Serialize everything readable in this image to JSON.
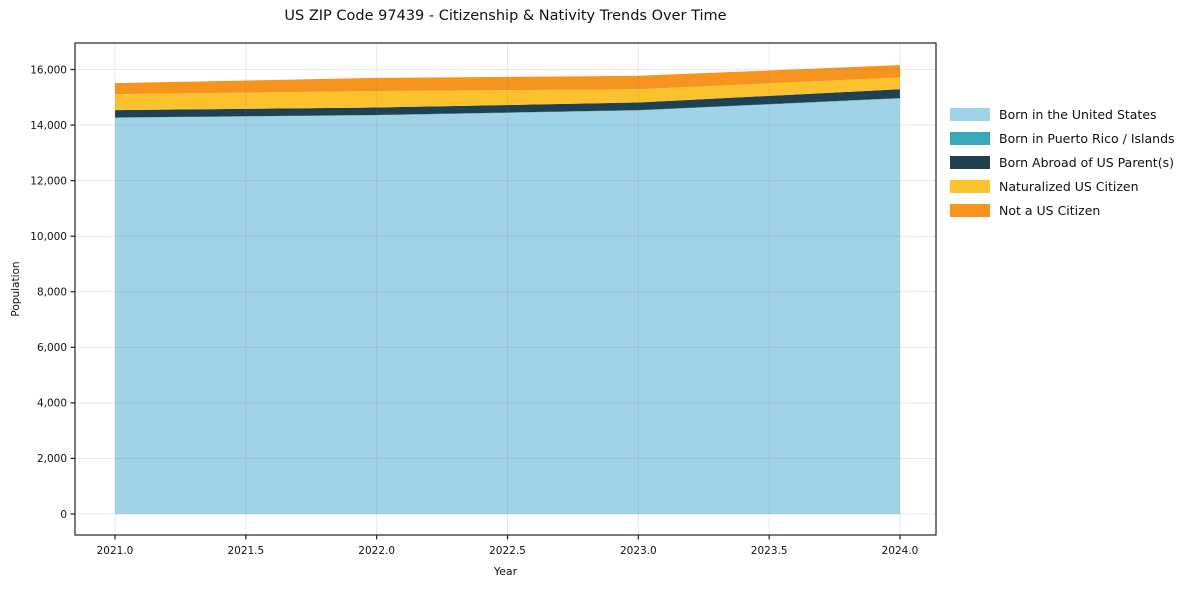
{
  "chart_data": {
    "type": "area",
    "stacked": true,
    "title": "US ZIP Code 97439 - Citizenship & Nativity Trends Over Time",
    "xlabel": "Year",
    "ylabel": "Population",
    "grid": true,
    "legend_position": "right-outside",
    "x": [
      2021,
      2022,
      2023,
      2024
    ],
    "x_range": [
      2021,
      2024
    ],
    "y_range": [
      0,
      16000
    ],
    "series": [
      {
        "id": "born-us",
        "name": "Born in the United States",
        "color": "#a0d3e8",
        "values": [
          14260,
          14350,
          14525,
          14955
        ]
      },
      {
        "id": "born-pr-islands",
        "name": "Born in Puerto Rico / Islands",
        "color": "#38a8bd",
        "values": [
          12,
          12,
          12,
          15
        ]
      },
      {
        "id": "born-abroad",
        "name": "Born Abroad of US Parent(s)",
        "color": "#20414f",
        "values": [
          265,
          270,
          275,
          320
        ]
      },
      {
        "id": "naturalized",
        "name": "Naturalized US Citizen",
        "color": "#fcc22d",
        "values": [
          575,
          595,
          480,
          425
        ]
      },
      {
        "id": "not-citizen",
        "name": "Not a US Citizen",
        "color": "#f6941d",
        "values": [
          400,
          470,
          480,
          445
        ]
      }
    ],
    "x_ticks": [
      {
        "value": 2021.0,
        "label": "2021.0"
      },
      {
        "value": 2021.5,
        "label": "2021.5"
      },
      {
        "value": 2022.0,
        "label": "2022.0"
      },
      {
        "value": 2022.5,
        "label": "2022.5"
      },
      {
        "value": 2023.0,
        "label": "2023.0"
      },
      {
        "value": 2023.5,
        "label": "2023.5"
      },
      {
        "value": 2024.0,
        "label": "2024.0"
      }
    ],
    "y_ticks": [
      {
        "value": 0,
        "label": "0"
      },
      {
        "value": 2000,
        "label": "2,000"
      },
      {
        "value": 4000,
        "label": "4,000"
      },
      {
        "value": 6000,
        "label": "6,000"
      },
      {
        "value": 8000,
        "label": "8,000"
      },
      {
        "value": 10000,
        "label": "10,000"
      },
      {
        "value": 12000,
        "label": "12,000"
      },
      {
        "value": 14000,
        "label": "14,000"
      },
      {
        "value": 16000,
        "label": "16,000"
      }
    ]
  }
}
